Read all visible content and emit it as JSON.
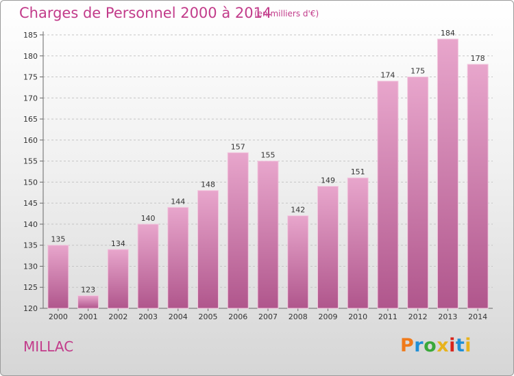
{
  "chart": {
    "title": "Charges de Personnel 2000 à 2014",
    "unit": "(en milliers d'€)",
    "commune": "MILLAC"
  },
  "logo": {
    "text": "Proxiti",
    "colors": [
      "#f07a1a",
      "#1f8fd6",
      "#3aa83a",
      "#e8b31c",
      "#d9251c",
      "#1f8fd6",
      "#e8b31c"
    ]
  },
  "colors": {
    "accent": "#c23b8a",
    "bar_top": "#e8a6cc",
    "bar_bottom": "#b0568c"
  },
  "chart_data": {
    "type": "bar",
    "title": "Charges de Personnel 2000 à 2014",
    "subtitle": "(en milliers d'€)",
    "categories": [
      "2000",
      "2001",
      "2002",
      "2003",
      "2004",
      "2005",
      "2006",
      "2007",
      "2008",
      "2009",
      "2010",
      "2011",
      "2012",
      "2013",
      "2014"
    ],
    "values": [
      135,
      123,
      134,
      140,
      144,
      148,
      157,
      155,
      142,
      149,
      151,
      174,
      175,
      184,
      178
    ],
    "ylim": [
      120,
      185
    ],
    "yticks": [
      120,
      125,
      130,
      135,
      140,
      145,
      150,
      155,
      160,
      165,
      170,
      175,
      180,
      185
    ],
    "grid": true,
    "data_labels": true
  }
}
